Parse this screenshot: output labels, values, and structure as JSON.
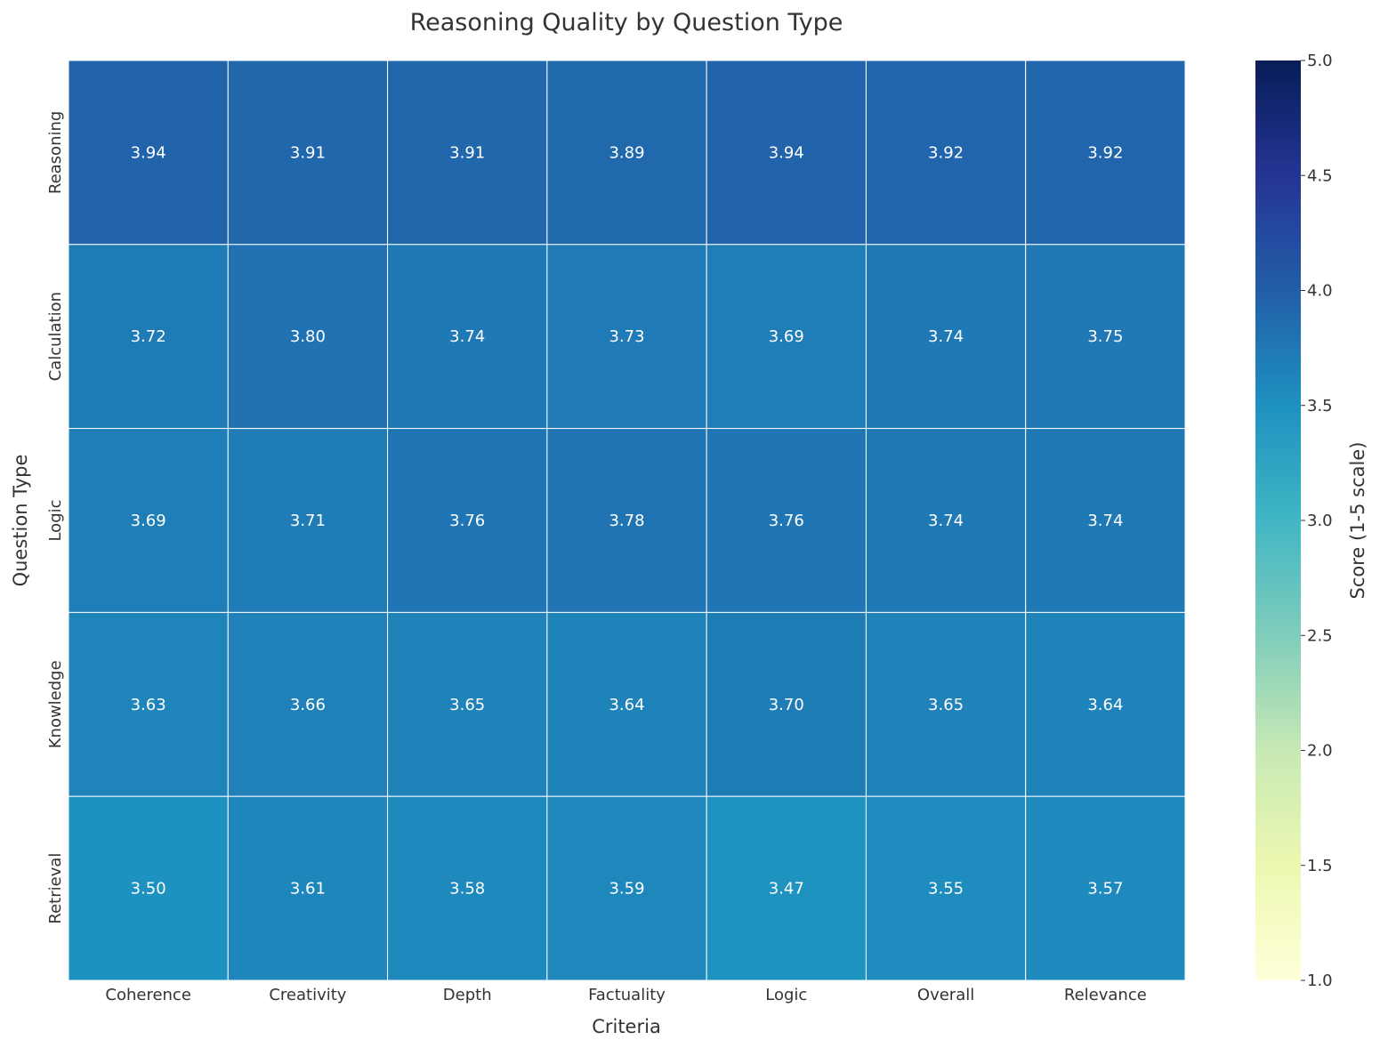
{
  "chart_data": {
    "type": "heatmap",
    "title": "Reasoning Quality by Question Type",
    "xlabel": "Criteria",
    "ylabel": "Question Type",
    "x_categories": [
      "Coherence",
      "Creativity",
      "Depth",
      "Factuality",
      "Logic",
      "Overall",
      "Relevance"
    ],
    "y_categories": [
      "Reasoning",
      "Calculation",
      "Logic",
      "Knowledge",
      "Retrieval"
    ],
    "values": [
      [
        3.94,
        3.91,
        3.91,
        3.89,
        3.94,
        3.92,
        3.92
      ],
      [
        3.72,
        3.8,
        3.74,
        3.73,
        3.69,
        3.74,
        3.75
      ],
      [
        3.69,
        3.71,
        3.76,
        3.78,
        3.76,
        3.74,
        3.74
      ],
      [
        3.63,
        3.66,
        3.65,
        3.64,
        3.7,
        3.65,
        3.64
      ],
      [
        3.5,
        3.61,
        3.58,
        3.59,
        3.47,
        3.55,
        3.57
      ]
    ],
    "colorbar": {
      "label": "Score (1-5 scale)",
      "range": [
        1.0,
        5.0
      ],
      "ticks": [
        "1.0",
        "1.5",
        "2.0",
        "2.5",
        "3.0",
        "3.5",
        "4.0",
        "4.5",
        "5.0"
      ],
      "colormap": "YlGnBu",
      "colors": [
        "#ffffd9",
        "#edf8b1",
        "#c7e9b4",
        "#7fcdbb",
        "#41b6c4",
        "#1d91c0",
        "#225ea8",
        "#253494",
        "#081d58"
      ]
    },
    "grid": false,
    "annotations": "values shown in each cell, 2 decimals"
  }
}
